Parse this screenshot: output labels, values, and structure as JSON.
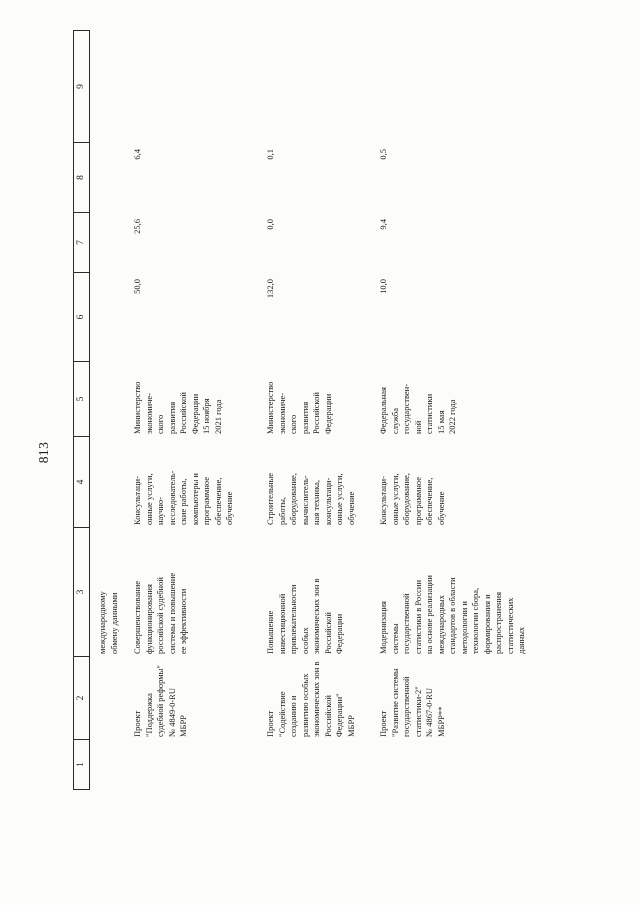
{
  "page_number": "813",
  "table": {
    "header": [
      "1",
      "2",
      "3",
      "4",
      "5",
      "6",
      "7",
      "8",
      "9"
    ],
    "rows": [
      {
        "c1": "",
        "c2": "",
        "c3": "международному\nобмену данными",
        "c4": "",
        "c5": "",
        "c6": "",
        "c7": "",
        "c8": "",
        "c9": ""
      },
      {
        "c1": "",
        "c2": "Проект\n\"Поддержка\nсудебной реформы\"\n№ 4849-0-RU\nМБРР",
        "c3": "Совершенствование\nфункционирования\nроссийской судебной\nсистемы и повышение\nее эффективности",
        "c4": "Консультаци-\nонные услуги,\nнаучно-\nисследователь-\nские работы,\nкомпьютеры и\nпрограммное\nобеспечение,\nобучение",
        "c5": "Министерство\nэкономиче-\nского\nразвития\nРоссийской\nФедерации\n15 ноября\n2021 года",
        "c6": "50,0",
        "c7": "25,6",
        "c8": "6,4",
        "c9": ""
      },
      {
        "c1": "",
        "c2": "Проект\n\"Содействие\nсозданию и\nразвитию особых\nэкономических зон в\nРоссийской\nФедерации\"\nМБРР",
        "c3": "Повышение\nинвестиционной\nпривлекательности\nособых\nэкономических зон в\nРоссийской\nФедерации",
        "c4": "Строительные\nработы,\nоборудование,\nвычислитель-\nная техника,\nконсультаци-\nонные услуги,\nобучение",
        "c5": "Министерство\nэкономиче-\nского\nразвития\nРоссийской\nФедерации",
        "c6": "132,0",
        "c7": "0,0",
        "c8": "0,1",
        "c9": ""
      },
      {
        "c1": "",
        "c2": "Проект\n\"Развитие системы\nгосударственной\nстатистики-2\"\n№ 4867-0-RU\nМБРР**",
        "c3": "Модернизация\nсистемы\nгосударственной\nстатистики в России\nна основе реализации\nмеждународных\nстандартов в области\nметодологии и\nтехнологии сбора,\nформирования и\nраспространения\nстатистических\nданных",
        "c4": "Консультаци-\nонные услуги,\nоборудование,\nпрограммное\nобеспечение,\nобучение",
        "c5": "Федеральная\nслужба\nгосударствен-\nной\nстатистики\n15 мая\n2022 года",
        "c6": "10,0",
        "c7": "9,4",
        "c8": "0,5",
        "c9": ""
      }
    ]
  }
}
